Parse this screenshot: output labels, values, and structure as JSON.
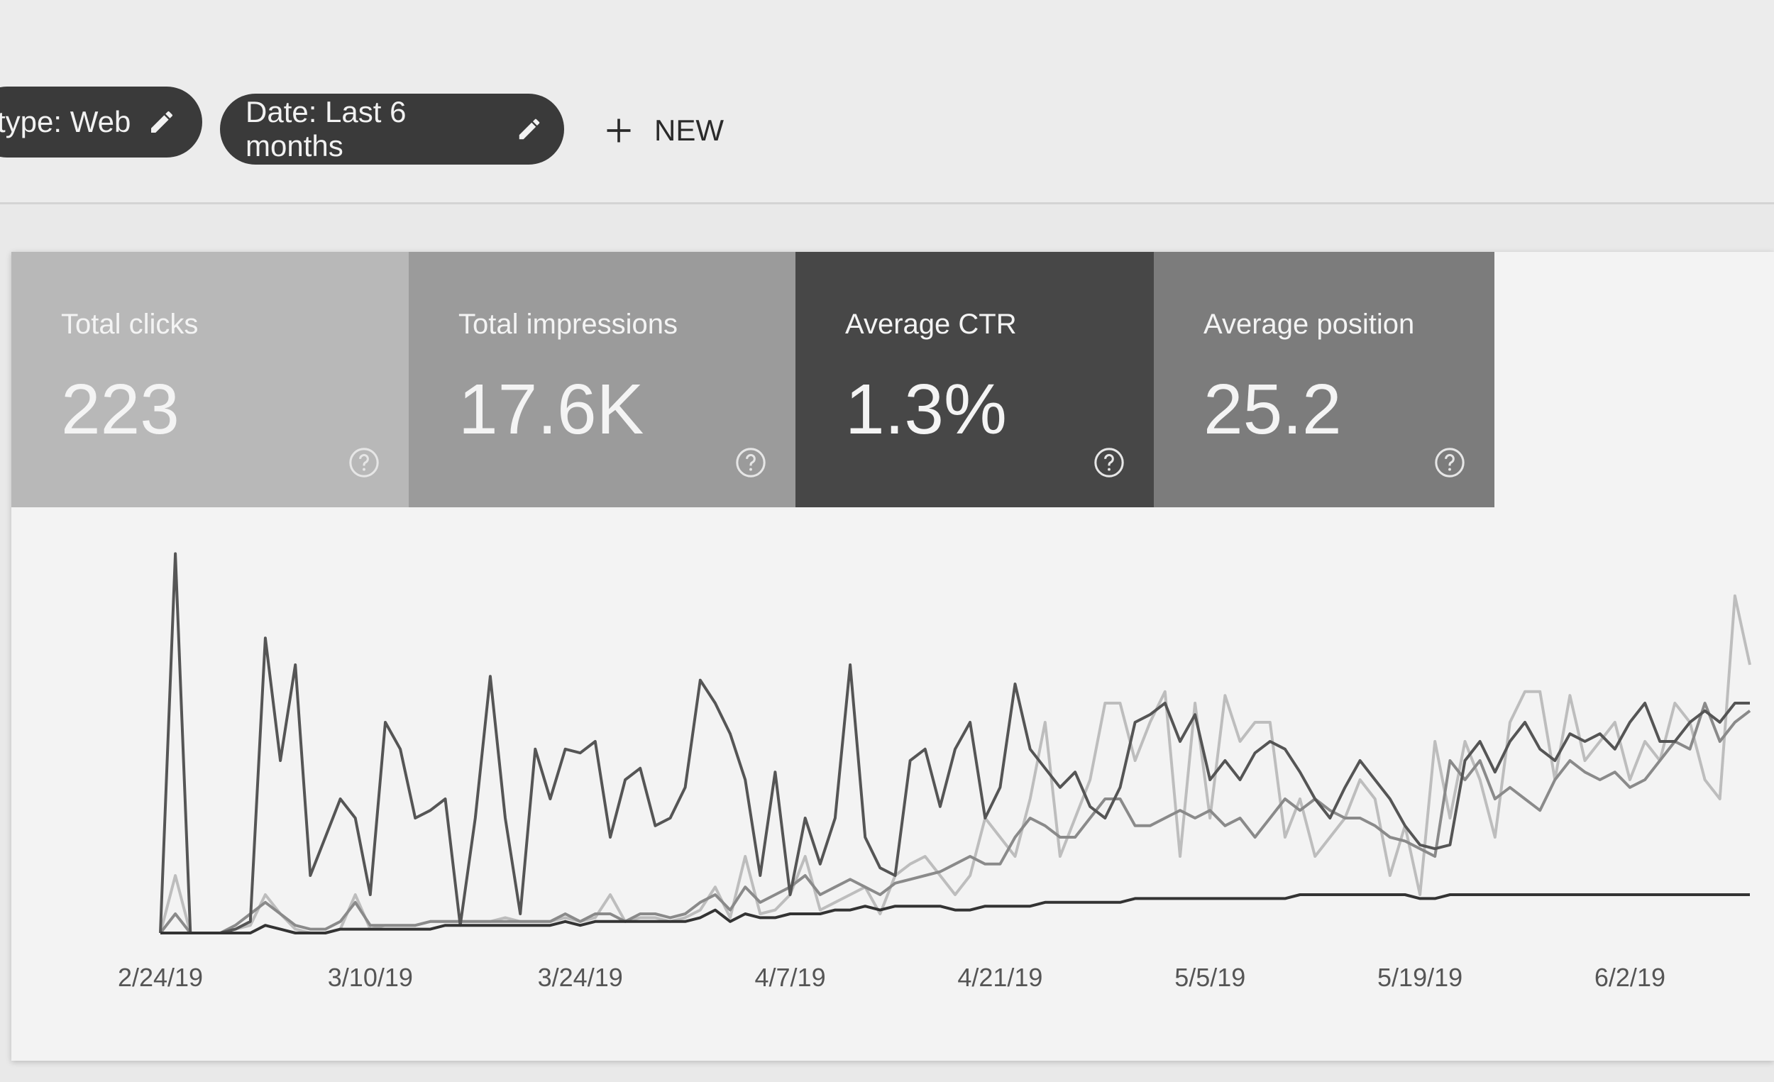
{
  "filters": [
    {
      "label": "type: Web"
    },
    {
      "label": "Date: Last 6 months"
    }
  ],
  "new_button": "NEW",
  "metrics": [
    {
      "label": "Total clicks",
      "value": "223"
    },
    {
      "label": "Total impressions",
      "value": "17.6K"
    },
    {
      "label": "Average CTR",
      "value": "1.3%"
    },
    {
      "label": "Average position",
      "value": "25.2"
    }
  ],
  "chart_data": {
    "type": "line",
    "categories": [
      "2/24/19",
      null,
      null,
      null,
      null,
      null,
      null,
      null,
      null,
      null,
      null,
      null,
      null,
      null,
      "3/10/19",
      null,
      null,
      null,
      null,
      null,
      null,
      null,
      null,
      null,
      null,
      null,
      null,
      null,
      "3/24/19",
      null,
      null,
      null,
      null,
      null,
      null,
      null,
      null,
      null,
      null,
      null,
      null,
      null,
      "4/7/19",
      null,
      null,
      null,
      null,
      null,
      null,
      null,
      null,
      null,
      null,
      null,
      null,
      null,
      "4/21/19",
      null,
      null,
      null,
      null,
      null,
      null,
      null,
      null,
      null,
      null,
      null,
      null,
      null,
      "5/5/19",
      null,
      null,
      null,
      null,
      null,
      null,
      null,
      null,
      null,
      null,
      null,
      null,
      null,
      "5/19/19",
      null,
      null,
      null,
      null,
      null,
      null,
      null,
      null,
      null,
      null,
      null,
      null,
      null,
      "6/2/19",
      null,
      null,
      null,
      null,
      null,
      null,
      null,
      null
    ],
    "ylim": [
      0,
      100
    ],
    "series": [
      {
        "color": "#bdbdbd",
        "values": [
          0,
          15,
          0,
          0,
          0,
          1,
          2,
          10,
          5,
          1,
          0,
          0,
          1,
          10,
          1,
          2,
          2,
          2,
          3,
          3,
          3,
          3,
          3,
          4,
          3,
          3,
          3,
          4,
          3,
          4,
          10,
          3,
          4,
          4,
          3,
          4,
          6,
          12,
          4,
          20,
          5,
          6,
          10,
          20,
          6,
          8,
          10,
          12,
          5,
          15,
          18,
          20,
          15,
          10,
          15,
          30,
          25,
          20,
          35,
          55,
          20,
          30,
          40,
          60,
          60,
          45,
          55,
          63,
          20,
          60,
          30,
          62,
          50,
          55,
          55,
          25,
          35,
          20,
          25,
          30,
          40,
          35,
          15,
          28,
          10,
          50,
          30,
          50,
          40,
          25,
          55,
          63,
          63,
          40,
          62,
          45,
          50,
          55,
          40,
          50,
          45,
          60,
          55,
          40,
          35,
          88,
          70
        ]
      },
      {
        "color": "#8a8a8a",
        "values": [
          0,
          5,
          0,
          0,
          0,
          2,
          5,
          8,
          5,
          2,
          1,
          1,
          3,
          8,
          2,
          2,
          2,
          2,
          3,
          3,
          3,
          3,
          3,
          3,
          3,
          3,
          3,
          5,
          3,
          5,
          5,
          3,
          5,
          5,
          4,
          5,
          8,
          10,
          6,
          12,
          8,
          10,
          12,
          15,
          10,
          12,
          14,
          12,
          10,
          13,
          14,
          15,
          16,
          18,
          20,
          18,
          18,
          25,
          30,
          28,
          25,
          25,
          30,
          35,
          35,
          28,
          28,
          30,
          32,
          30,
          32,
          28,
          30,
          25,
          30,
          35,
          32,
          35,
          32,
          30,
          30,
          28,
          25,
          24,
          22,
          20,
          45,
          40,
          45,
          35,
          38,
          35,
          32,
          40,
          45,
          42,
          40,
          42,
          38,
          40,
          45,
          50,
          48,
          60,
          50,
          55,
          58
        ]
      },
      {
        "color": "#555555",
        "values": [
          0,
          99,
          0,
          0,
          0,
          1,
          3,
          77,
          45,
          70,
          15,
          25,
          35,
          30,
          10,
          55,
          48,
          30,
          32,
          35,
          2,
          30,
          67,
          30,
          5,
          48,
          35,
          48,
          47,
          50,
          25,
          40,
          43,
          28,
          30,
          38,
          66,
          60,
          52,
          40,
          15,
          42,
          10,
          30,
          18,
          30,
          70,
          25,
          17,
          15,
          45,
          48,
          33,
          48,
          55,
          30,
          38,
          65,
          48,
          43,
          38,
          42,
          33,
          30,
          38,
          55,
          57,
          60,
          50,
          57,
          40,
          45,
          40,
          47,
          50,
          48,
          42,
          35,
          30,
          38,
          45,
          40,
          35,
          28,
          23,
          22,
          23,
          45,
          50,
          42,
          50,
          55,
          48,
          45,
          52,
          50,
          52,
          48,
          55,
          60,
          50,
          50,
          55,
          58,
          55,
          60,
          60
        ]
      },
      {
        "color": "#333333",
        "values": [
          0,
          0,
          0,
          0,
          0,
          0,
          0,
          2,
          1,
          0,
          0,
          0,
          1,
          1,
          1,
          1,
          1,
          1,
          1,
          2,
          2,
          2,
          2,
          2,
          2,
          2,
          2,
          3,
          2,
          3,
          3,
          3,
          3,
          3,
          3,
          3,
          4,
          6,
          3,
          5,
          4,
          4,
          5,
          5,
          5,
          6,
          6,
          7,
          6,
          7,
          7,
          7,
          7,
          6,
          6,
          7,
          7,
          7,
          7,
          8,
          8,
          8,
          8,
          8,
          8,
          9,
          9,
          9,
          9,
          9,
          9,
          9,
          9,
          9,
          9,
          9,
          10,
          10,
          10,
          10,
          10,
          10,
          10,
          10,
          9,
          9,
          10,
          10,
          10,
          10,
          10,
          10,
          10,
          10,
          10,
          10,
          10,
          10,
          10,
          10,
          10,
          10,
          10,
          10,
          10,
          10,
          10
        ]
      }
    ]
  }
}
